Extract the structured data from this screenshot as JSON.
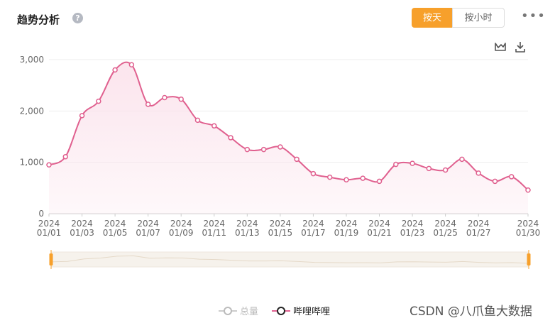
{
  "header": {
    "title": "趋势分析",
    "help_symbol": "?",
    "toggle_day": "按天",
    "toggle_hour": "按小时",
    "more_symbol": "•••"
  },
  "toolbar": {
    "chart_type_icon": "line-chart-icon",
    "download_icon": "download-icon"
  },
  "legend": {
    "total": "总量",
    "bilibili": "哔哩哔哩"
  },
  "watermark": "CSDN @八爪鱼大数据",
  "colors": {
    "accent": "#f7a02b",
    "series": "#e0608f",
    "area": "#fbe3ec",
    "inactive": "#cccccc"
  },
  "chart_data": {
    "type": "area",
    "ylim": [
      0,
      3000
    ],
    "yticks": [
      "0",
      "1,000",
      "2,000",
      "3,000"
    ],
    "ytick_values": [
      0,
      1000,
      2000,
      3000
    ],
    "xtick_labels": [
      [
        "2024",
        "01/01"
      ],
      [
        "2024",
        "01/03"
      ],
      [
        "2024",
        "01/05"
      ],
      [
        "2024",
        "01/07"
      ],
      [
        "2024",
        "01/09"
      ],
      [
        "2024",
        "01/11"
      ],
      [
        "2024",
        "01/13"
      ],
      [
        "2024",
        "01/15"
      ],
      [
        "2024",
        "01/17"
      ],
      [
        "2024",
        "01/19"
      ],
      [
        "2024",
        "01/21"
      ],
      [
        "2024",
        "01/23"
      ],
      [
        "2024",
        "01/25"
      ],
      [
        "2024",
        "01/27"
      ],
      [
        "2024",
        "01/30"
      ]
    ],
    "xtick_days": [
      1,
      3,
      5,
      7,
      9,
      11,
      13,
      15,
      17,
      19,
      21,
      23,
      25,
      27,
      30
    ],
    "legend_position": "bottom",
    "grid": true,
    "series": [
      {
        "name": "哔哩哔哩",
        "days": [
          1,
          2,
          3,
          4,
          5,
          6,
          7,
          8,
          9,
          10,
          11,
          12,
          13,
          14,
          15,
          16,
          17,
          18,
          19,
          20,
          21,
          22,
          23,
          24,
          25,
          26,
          27,
          28,
          29,
          30
        ],
        "values": [
          950,
          1110,
          1910,
          2190,
          2800,
          2900,
          2130,
          2260,
          2230,
          1820,
          1710,
          1480,
          1250,
          1250,
          1300,
          1060,
          780,
          710,
          660,
          690,
          630,
          960,
          980,
          880,
          850,
          1060,
          790,
          630,
          720,
          460
        ]
      }
    ]
  }
}
